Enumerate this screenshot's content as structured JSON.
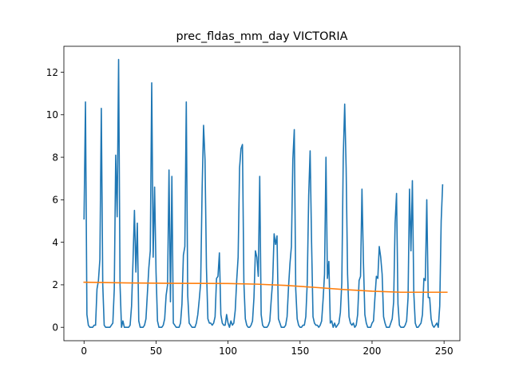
{
  "chart_data": {
    "type": "line",
    "title": "prec_fldas_mm_day VICTORIA",
    "xlabel": "",
    "ylabel": "",
    "xlim": [
      -14,
      261
    ],
    "ylim": [
      -0.63,
      13.22
    ],
    "x_ticks": [
      0,
      50,
      100,
      150,
      200,
      250
    ],
    "y_ticks": [
      0,
      2,
      4,
      6,
      8,
      10,
      12
    ],
    "grid": false,
    "legend": "none",
    "series": [
      {
        "color": "#1f77b4",
        "x_start": 0,
        "values": [
          5.1,
          10.6,
          0.6,
          0.1,
          0.0,
          0.0,
          0.0,
          0.1,
          0.1,
          1.8,
          2.2,
          3.2,
          10.3,
          2.0,
          0.1,
          0.0,
          0.0,
          0.0,
          0.0,
          0.1,
          0.2,
          1.8,
          8.1,
          5.2,
          12.6,
          2.0,
          0.0,
          0.3,
          0.0,
          0.0,
          0.0,
          0.0,
          0.1,
          1.0,
          3.1,
          5.5,
          2.6,
          4.9,
          0.3,
          0.0,
          0.0,
          0.0,
          0.1,
          0.4,
          1.6,
          2.8,
          3.6,
          11.5,
          3.3,
          6.6,
          2.6,
          0.3,
          0.0,
          0.0,
          0.0,
          0.1,
          0.4,
          1.5,
          2.0,
          7.4,
          1.2,
          7.1,
          0.2,
          0.1,
          0.0,
          0.0,
          0.0,
          0.2,
          1.1,
          3.4,
          3.8,
          10.6,
          1.5,
          0.2,
          0.1,
          0.0,
          0.0,
          0.0,
          0.2,
          0.6,
          1.3,
          2.1,
          6.5,
          9.5,
          7.9,
          2.8,
          0.4,
          0.2,
          0.2,
          0.1,
          0.2,
          0.5,
          2.3,
          2.4,
          3.5,
          0.6,
          0.2,
          0.1,
          0.1,
          0.6,
          0.2,
          0.0,
          0.3,
          0.1,
          0.2,
          0.8,
          2.2,
          3.3,
          7.5,
          8.4,
          8.6,
          2.1,
          0.4,
          0.1,
          0.0,
          0.0,
          0.1,
          0.3,
          1.4,
          3.6,
          3.3,
          2.4,
          7.1,
          0.6,
          0.1,
          0.0,
          0.0,
          0.0,
          0.1,
          0.3,
          1.3,
          2.2,
          4.4,
          3.9,
          4.3,
          0.4,
          0.2,
          0.0,
          0.0,
          0.0,
          0.1,
          0.5,
          1.9,
          3.0,
          3.8,
          7.9,
          9.3,
          1.8,
          0.4,
          0.1,
          0.0,
          0.0,
          0.1,
          0.1,
          0.5,
          2.1,
          6.2,
          8.3,
          4.0,
          0.5,
          0.2,
          0.1,
          0.1,
          0.0,
          0.1,
          0.3,
          1.3,
          2.5,
          8.0,
          2.3,
          3.1,
          0.2,
          0.3,
          0.0,
          0.2,
          0.0,
          0.1,
          0.2,
          0.7,
          2.1,
          8.0,
          10.5,
          7.5,
          2.5,
          0.5,
          0.2,
          0.1,
          0.2,
          0.0,
          0.1,
          0.6,
          2.2,
          2.4,
          6.5,
          3.1,
          0.6,
          0.2,
          0.0,
          0.0,
          0.0,
          0.2,
          0.3,
          1.4,
          2.4,
          2.3,
          3.8,
          3.3,
          2.5,
          0.5,
          0.2,
          0.0,
          0.0,
          0.0,
          0.2,
          0.4,
          1.2,
          4.9,
          6.3,
          1.1,
          0.1,
          0.0,
          0.0,
          0.0,
          0.1,
          0.3,
          1.4,
          6.5,
          3.6,
          6.9,
          1.6,
          0.2,
          0.0,
          0.0,
          0.1,
          0.2,
          0.6,
          2.3,
          2.2,
          6.0,
          1.4,
          1.4,
          0.4,
          0.1,
          0.0,
          0.1,
          0.2,
          0.0,
          1.0,
          5.0,
          6.7
        ]
      },
      {
        "color": "#ff7f0e",
        "points": [
          [
            0,
            2.12
          ],
          [
            30,
            2.09
          ],
          [
            60,
            2.07
          ],
          [
            100,
            2.06
          ],
          [
            120,
            2.03
          ],
          [
            140,
            1.97
          ],
          [
            160,
            1.88
          ],
          [
            180,
            1.78
          ],
          [
            200,
            1.7
          ],
          [
            220,
            1.65
          ],
          [
            252,
            1.65
          ]
        ]
      }
    ]
  }
}
